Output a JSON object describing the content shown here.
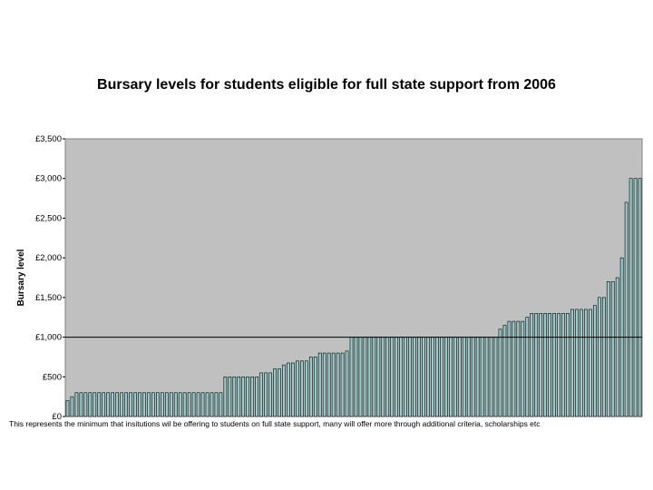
{
  "chart_data": {
    "type": "bar",
    "title": "Bursary levels for students eligible for full state support from 2006",
    "xlabel": "",
    "ylabel": "Bursary level",
    "ylim": [
      0,
      3500
    ],
    "yticks": [
      0,
      500,
      1000,
      1500,
      2000,
      2500,
      3000,
      3500
    ],
    "ytick_labels": [
      "£0",
      "£500",
      "£1,000",
      "£1,500",
      "£2,000",
      "£2,500",
      "£3,000",
      "£3,500"
    ],
    "reference_line": 1000,
    "grid": false,
    "legend": "none",
    "bar_color": "#99cccc",
    "plot_bg": "#c0c0c0",
    "note": "This represents the minimum that insitutions wil be offering to students on full state support, many will offer more through additional criteria, scholarships etc",
    "values": [
      200,
      250,
      300,
      300,
      300,
      300,
      300,
      300,
      300,
      300,
      300,
      300,
      300,
      300,
      300,
      300,
      300,
      300,
      300,
      300,
      300,
      300,
      300,
      300,
      300,
      300,
      300,
      300,
      300,
      300,
      300,
      300,
      300,
      300,
      300,
      500,
      500,
      500,
      500,
      500,
      500,
      500,
      500,
      550,
      550,
      550,
      600,
      600,
      650,
      675,
      675,
      700,
      700,
      700,
      750,
      750,
      800,
      800,
      800,
      800,
      800,
      800,
      825,
      1000,
      1000,
      1000,
      1000,
      1000,
      1000,
      1000,
      1000,
      1000,
      1000,
      1000,
      1000,
      1000,
      1000,
      1000,
      1000,
      1000,
      1000,
      1000,
      1000,
      1000,
      1000,
      1000,
      1000,
      1000,
      1000,
      1000,
      1000,
      1000,
      1000,
      1000,
      1000,
      1000,
      1100,
      1150,
      1200,
      1200,
      1200,
      1200,
      1250,
      1300,
      1300,
      1300,
      1300,
      1300,
      1300,
      1300,
      1300,
      1300,
      1350,
      1350,
      1350,
      1350,
      1350,
      1400,
      1500,
      1500,
      1700,
      1700,
      1750,
      2000,
      2700,
      3000,
      3000,
      3000
    ]
  }
}
